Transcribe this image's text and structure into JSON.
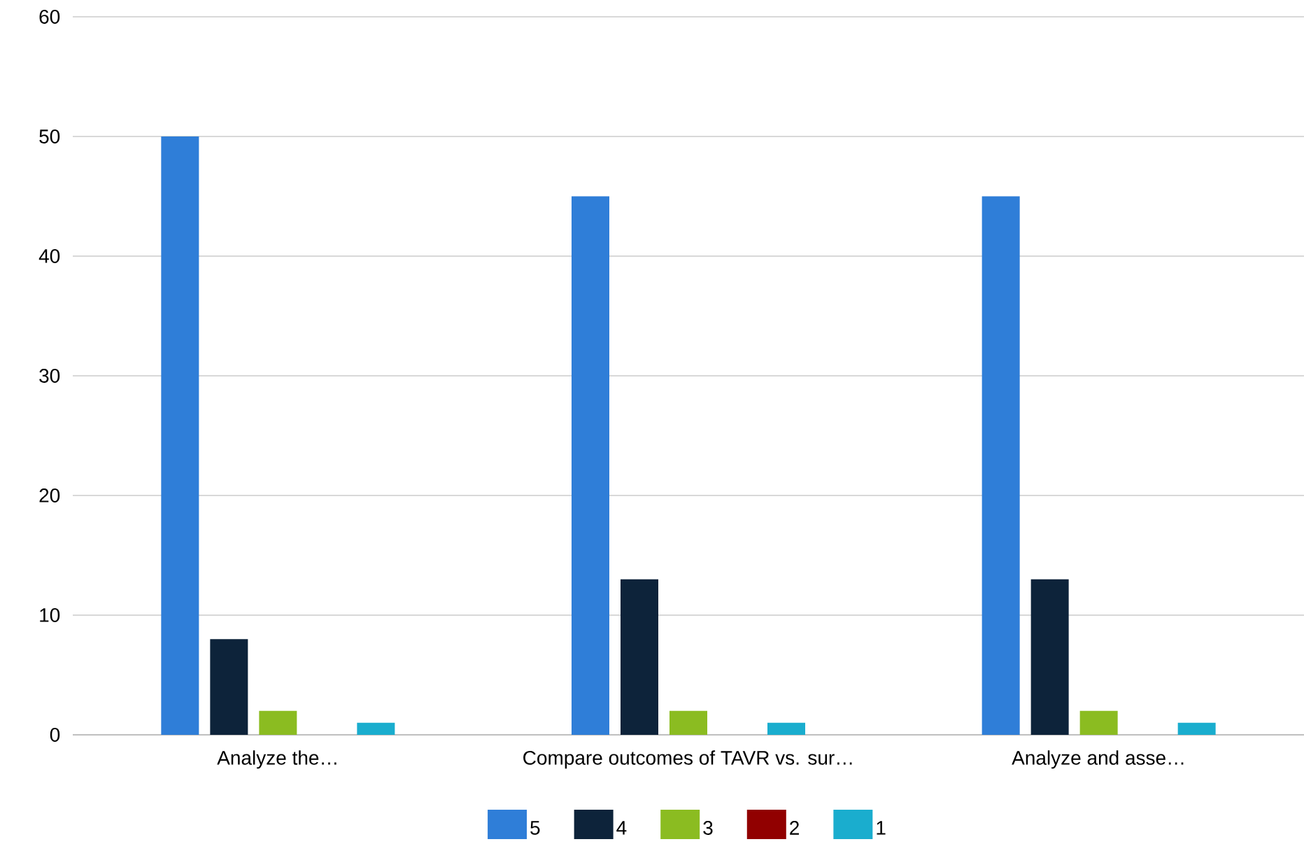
{
  "chart_data": {
    "type": "bar",
    "categories": [
      "Analyze the…",
      "Compare outcomes of TAVR vs. sur…",
      "Analyze and asse…"
    ],
    "series": [
      {
        "name": "5",
        "color": "#2f7ed8",
        "values": [
          50,
          45,
          45
        ]
      },
      {
        "name": "4",
        "color": "#0d233a",
        "values": [
          8,
          13,
          13
        ]
      },
      {
        "name": "3",
        "color": "#8bbc21",
        "values": [
          2,
          2,
          2
        ]
      },
      {
        "name": "2",
        "color": "#910000",
        "values": [
          0,
          0,
          0
        ]
      },
      {
        "name": "1",
        "color": "#1aadce",
        "values": [
          1,
          1,
          1
        ]
      }
    ],
    "ylim": [
      0,
      60
    ],
    "yticks": [
      0,
      10,
      20,
      30,
      40,
      50,
      60
    ],
    "grid": "y",
    "legend": "bottom"
  }
}
